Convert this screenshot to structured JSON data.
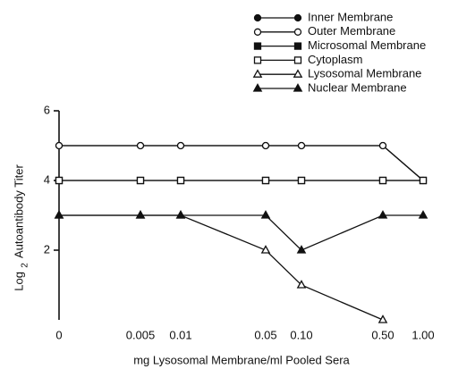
{
  "chart_data": {
    "type": "line",
    "x_label": "mg Lysosomal Membrane/ml Pooled Sera",
    "y_label": [
      "Log",
      "2",
      "Autoantibody Titer"
    ],
    "categories": [
      "0",
      "0.005",
      "0.01",
      "0.05",
      "0.10",
      "0.50",
      "1.00"
    ],
    "ylim": [
      0,
      6
    ],
    "yticks": [
      2,
      4,
      6
    ],
    "legend": "top-right",
    "series": [
      {
        "name": "Inner Membrane",
        "color": "#111111",
        "marker": "filled-circle",
        "values": [
          5,
          5,
          5,
          5,
          5,
          5,
          4
        ]
      },
      {
        "name": "Outer Membrane",
        "color": "#111111",
        "marker": "open-circle",
        "values": [
          5,
          5,
          5,
          5,
          5,
          5,
          4
        ]
      },
      {
        "name": "Microsomal Membrane",
        "color": "#111111",
        "marker": "filled-square",
        "values": [
          4,
          4,
          4,
          4,
          4,
          4,
          4
        ]
      },
      {
        "name": "Cytoplasm",
        "color": "#111111",
        "marker": "open-square",
        "values": [
          4,
          4,
          4,
          4,
          4,
          4,
          4
        ]
      },
      {
        "name": "Lysosomal Membrane",
        "color": "#111111",
        "marker": "open-triangle",
        "values": [
          3,
          3,
          3,
          2,
          1,
          0,
          null
        ]
      },
      {
        "name": "Nuclear Membrane",
        "color": "#111111",
        "marker": "filled-triangle",
        "values": [
          3,
          3,
          3,
          3,
          2,
          3,
          3
        ]
      }
    ]
  }
}
